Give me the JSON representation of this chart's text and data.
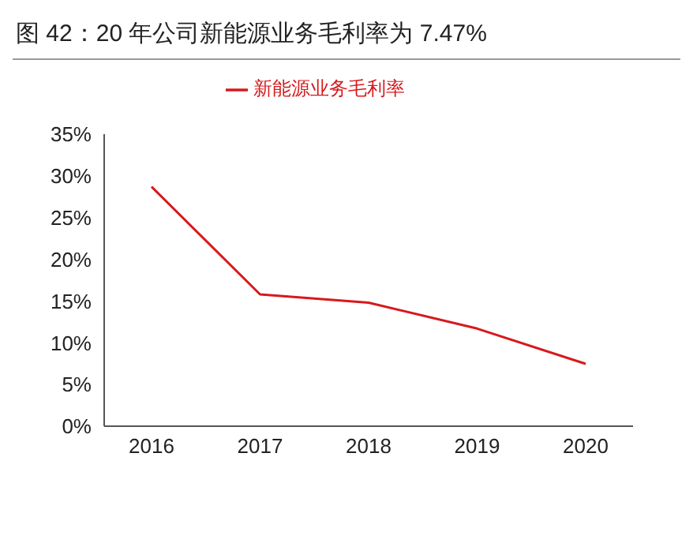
{
  "chart_data": {
    "type": "line",
    "title": "图 42：20 年公司新能源业务毛利率为 7.47%",
    "categories": [
      "2016",
      "2017",
      "2018",
      "2019",
      "2020"
    ],
    "series": [
      {
        "name": "新能源业务毛利率",
        "color": "#d7191c",
        "values": [
          28.7,
          15.8,
          14.8,
          11.7,
          7.47
        ]
      }
    ],
    "ylim": [
      0,
      35
    ],
    "yticks": [
      {
        "value": 0,
        "label": "0%"
      },
      {
        "value": 5,
        "label": "5%"
      },
      {
        "value": 10,
        "label": "10%"
      },
      {
        "value": 15,
        "label": "15%"
      },
      {
        "value": 20,
        "label": "20%"
      },
      {
        "value": 25,
        "label": "25%"
      },
      {
        "value": 30,
        "label": "30%"
      },
      {
        "value": 35,
        "label": "35%"
      }
    ],
    "grid": false,
    "legend": "top",
    "marker": "none",
    "line_style": "solid"
  }
}
